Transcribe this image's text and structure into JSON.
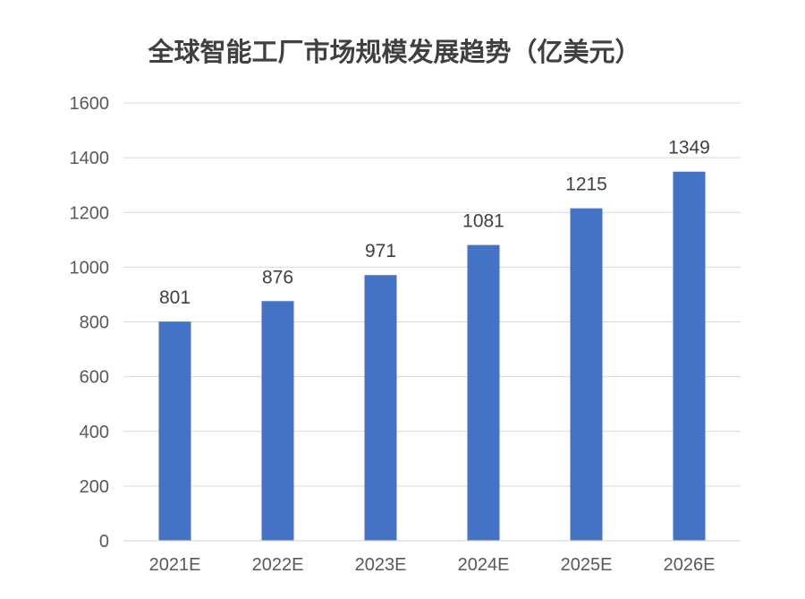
{
  "chart_data": {
    "type": "bar",
    "title": "全球智能工厂市场规模发展趋势（亿美元）",
    "categories": [
      "2021E",
      "2022E",
      "2023E",
      "2024E",
      "2025E",
      "2026E"
    ],
    "values": [
      801,
      876,
      971,
      1081,
      1215,
      1349
    ],
    "data_labels": [
      "801",
      "876",
      "971",
      "1081",
      "1215",
      "1349"
    ],
    "xlabel": "",
    "ylabel": "",
    "ylim": [
      0,
      1600
    ],
    "yticks": [
      "0",
      "200",
      "400",
      "600",
      "800",
      "1000",
      "1200",
      "1400",
      "1600"
    ],
    "grid": true,
    "legend": "none",
    "colors": {
      "bar": "#4472c4",
      "grid": "#d9d9d9",
      "tick_text": "#595959",
      "title_text": "#404040"
    }
  }
}
